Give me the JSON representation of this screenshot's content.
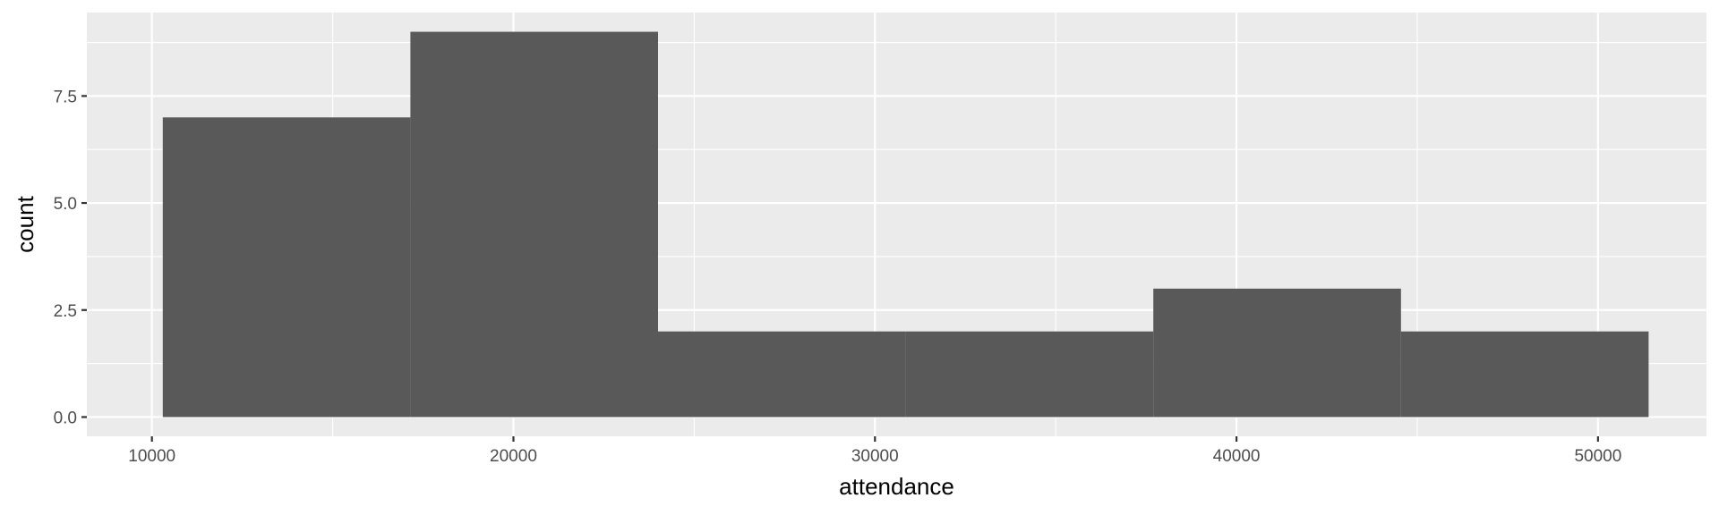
{
  "chart_data": {
    "type": "histogram",
    "title": "",
    "xlabel": "attendance",
    "ylabel": "count",
    "x_ticks": [
      10000,
      20000,
      30000,
      40000,
      50000
    ],
    "y_ticks": [
      0,
      2.5,
      5,
      7.5
    ],
    "x_tick_labels": [
      "10000",
      "20000",
      "30000",
      "40000",
      "50000"
    ],
    "y_tick_labels": [
      "0.0",
      "2.5",
      "5.0",
      "7.5"
    ],
    "xlim": [
      8200,
      53000
    ],
    "ylim": [
      -0.45,
      9.45
    ],
    "bins": [
      {
        "x0": 10300,
        "x1": 17150,
        "count": 7
      },
      {
        "x0": 17150,
        "x1": 24000,
        "count": 9
      },
      {
        "x0": 24000,
        "x1": 30850,
        "count": 2
      },
      {
        "x0": 30850,
        "x1": 37700,
        "count": 2
      },
      {
        "x0": 37700,
        "x1": 44550,
        "count": 3
      },
      {
        "x0": 44550,
        "x1": 51400,
        "count": 2
      }
    ],
    "bar_color": "#595959",
    "panel_color": "#ebebeb",
    "grid": true,
    "legend": "none"
  }
}
